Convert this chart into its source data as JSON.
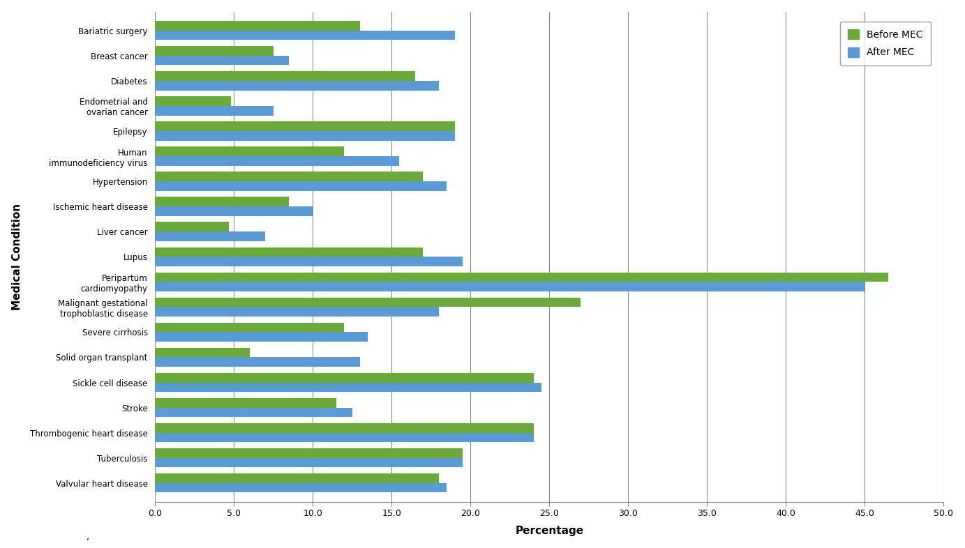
{
  "conditions": [
    "Valvular heart disease",
    "Tuberculosis",
    "Thrombogenic heart disease",
    "Stroke",
    "Sickle cell disease",
    "Solid organ transplant",
    "Severe cirrhosis",
    "Malignant gestational\ntrophoblastic disease",
    "Peripartum\ncardiomyopathy",
    "Lupus",
    "Liver cancer",
    "Ischemic heart disease",
    "Hypertension",
    "Human\nimmunodeficiency virus",
    "Epilepsy",
    "Endometrial and\novarian cancer",
    "Diabetes",
    "Breast cancer",
    "Bariatric surgery"
  ],
  "before_mec": [
    18.0,
    19.5,
    24.0,
    11.5,
    24.0,
    6.0,
    12.0,
    27.0,
    46.5,
    17.0,
    4.7,
    8.5,
    17.0,
    12.0,
    19.0,
    4.8,
    16.5,
    7.5,
    13.0
  ],
  "after_mec": [
    18.5,
    19.5,
    24.0,
    12.5,
    24.5,
    13.0,
    13.5,
    18.0,
    45.0,
    19.5,
    7.0,
    10.0,
    18.5,
    15.5,
    19.0,
    7.5,
    18.0,
    8.5,
    19.0
  ],
  "before_color": "#6aaa3a",
  "after_color": "#5b9bd5",
  "xlabel": "Percentage",
  "ylabel": "Medical Condition",
  "xlim": [
    0,
    50
  ],
  "xticks": [
    0.0,
    5.0,
    10.0,
    15.0,
    20.0,
    25.0,
    30.0,
    35.0,
    40.0,
    45.0,
    50.0
  ],
  "xtick_labels": [
    "0.0",
    "5.0",
    "10.0",
    "15.0",
    "20.0",
    "25.0",
    "30.0",
    "35.0",
    "40.0",
    "45.0",
    "50.0"
  ],
  "legend_before": "Before MEC",
  "legend_after": "After MEC",
  "background_color": "#ffffff",
  "grid_color": "#888888",
  "bar_height": 0.38,
  "figsize": [
    13.83,
    7.86
  ],
  "dpi": 100,
  "footnote": ","
}
